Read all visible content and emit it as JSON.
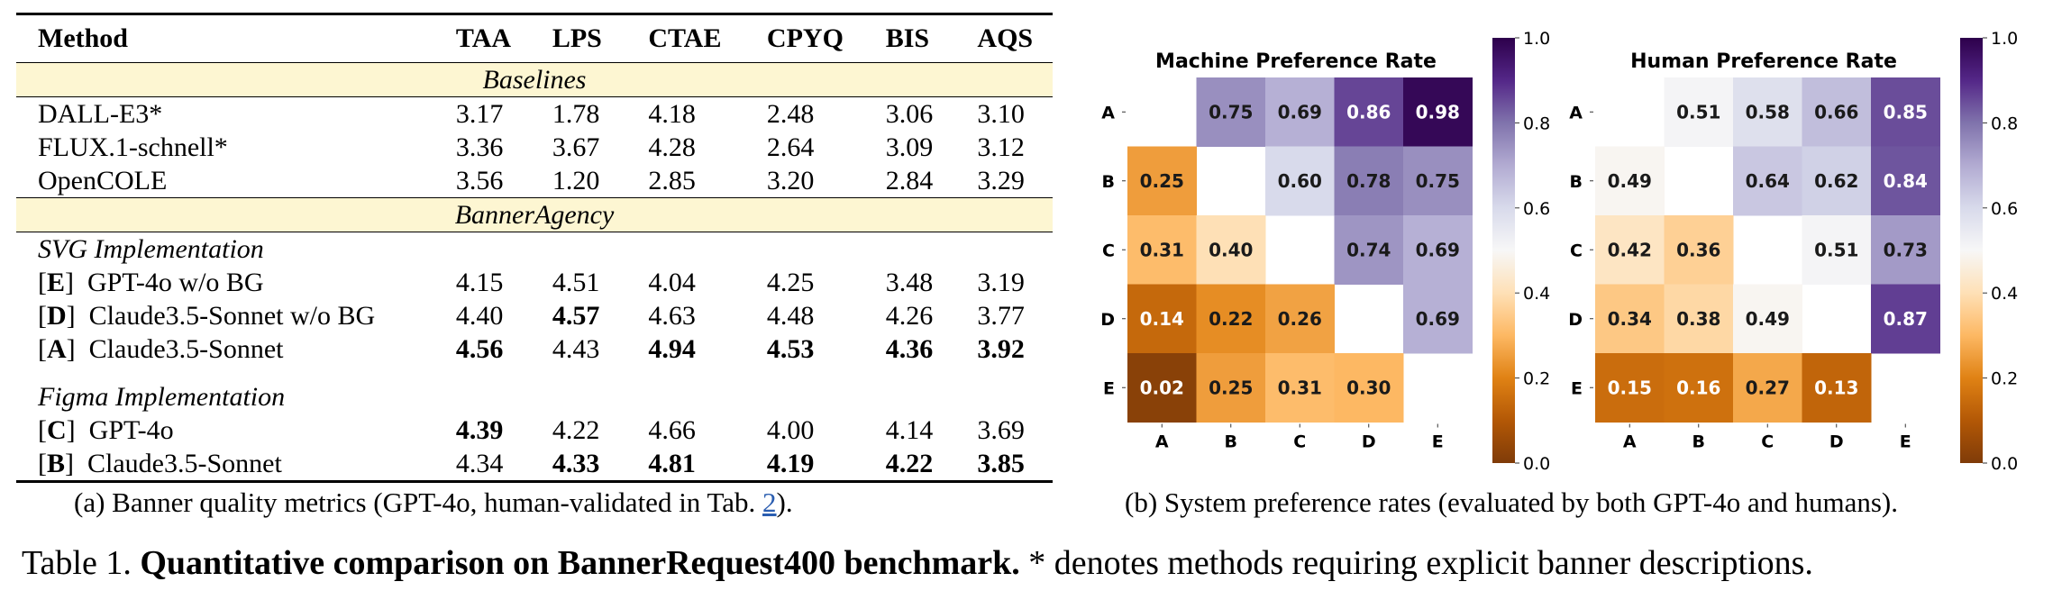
{
  "table": {
    "columns": [
      "Method",
      "TAA",
      "LPS",
      "CTAE",
      "CPYQ",
      "BIS",
      "AQS"
    ],
    "baselines_label": "Baselines",
    "baselines": [
      {
        "method": "DALL-E3*",
        "values": [
          "3.17",
          "1.78",
          "4.18",
          "2.48",
          "3.06",
          "3.10"
        ],
        "bold": [
          false,
          false,
          false,
          false,
          false,
          false
        ]
      },
      {
        "method": "FLUX.1-schnell*",
        "values": [
          "3.36",
          "3.67",
          "4.28",
          "2.64",
          "3.09",
          "3.12"
        ],
        "bold": [
          false,
          false,
          false,
          false,
          false,
          false
        ]
      },
      {
        "method": "OpenCOLE",
        "values": [
          "3.56",
          "1.20",
          "2.85",
          "3.20",
          "2.84",
          "3.29"
        ],
        "bold": [
          false,
          false,
          false,
          false,
          false,
          false
        ]
      }
    ],
    "agency_label": "BannerAgency",
    "svg_label": "SVG Implementation",
    "svg_rows": [
      {
        "tag": "E",
        "method": "GPT-4o w/o BG",
        "values": [
          "4.15",
          "4.51",
          "4.04",
          "4.25",
          "3.48",
          "3.19"
        ],
        "bold": [
          false,
          false,
          false,
          false,
          false,
          false
        ]
      },
      {
        "tag": "D",
        "method": "Claude3.5-Sonnet w/o BG",
        "values": [
          "4.40",
          "4.57",
          "4.63",
          "4.48",
          "4.26",
          "3.77"
        ],
        "bold": [
          false,
          true,
          false,
          false,
          false,
          false
        ]
      },
      {
        "tag": "A",
        "method": "Claude3.5-Sonnet",
        "values": [
          "4.56",
          "4.43",
          "4.94",
          "4.53",
          "4.36",
          "3.92"
        ],
        "bold": [
          true,
          false,
          true,
          true,
          true,
          true
        ]
      }
    ],
    "figma_label": "Figma Implementation",
    "figma_rows": [
      {
        "tag": "C",
        "method": "GPT-4o",
        "values": [
          "4.39",
          "4.22",
          "4.66",
          "4.00",
          "4.14",
          "3.69"
        ],
        "bold": [
          true,
          false,
          false,
          false,
          false,
          false
        ]
      },
      {
        "tag": "B",
        "method": "Claude3.5-Sonnet",
        "values": [
          "4.34",
          "4.33",
          "4.81",
          "4.19",
          "4.22",
          "3.85"
        ],
        "bold": [
          false,
          true,
          true,
          true,
          true,
          true
        ]
      }
    ]
  },
  "captions": {
    "a_text": "(a) Banner quality metrics (GPT-4o, human-validated in Tab. ",
    "a_ref": "2",
    "a_end": ").",
    "b_text": "(b) System preference rates (evaluated by both GPT-4o and humans).",
    "main_prefix": "Table 1. ",
    "main_bold": "Quantitative comparison on BannerRequest400 benchmark.",
    "main_rest": " * denotes methods requiring explicit banner descriptions."
  },
  "chart_data": [
    {
      "type": "heatmap",
      "title": "Machine Preference Rate",
      "rows": [
        "A",
        "B",
        "C",
        "D",
        "E"
      ],
      "cols": [
        "A",
        "B",
        "C",
        "D",
        "E"
      ],
      "values": [
        [
          null,
          0.75,
          0.69,
          0.86,
          0.98
        ],
        [
          0.25,
          null,
          0.6,
          0.78,
          0.75
        ],
        [
          0.31,
          0.4,
          null,
          0.74,
          0.69
        ],
        [
          0.14,
          0.22,
          0.26,
          null,
          0.69
        ],
        [
          0.02,
          0.25,
          0.31,
          0.3,
          null
        ]
      ],
      "colorbar_ticks": [
        "0.0",
        "0.2",
        "0.4",
        "0.6",
        "0.8",
        "1.0"
      ],
      "vmin": 0,
      "vmax": 1,
      "colormap": "PuOr"
    },
    {
      "type": "heatmap",
      "title": "Human Preference Rate",
      "rows": [
        "A",
        "B",
        "C",
        "D",
        "E"
      ],
      "cols": [
        "A",
        "B",
        "C",
        "D",
        "E"
      ],
      "values": [
        [
          null,
          0.51,
          0.58,
          0.66,
          0.85
        ],
        [
          0.49,
          null,
          0.64,
          0.62,
          0.84
        ],
        [
          0.42,
          0.36,
          null,
          0.51,
          0.73
        ],
        [
          0.34,
          0.38,
          0.49,
          null,
          0.87
        ],
        [
          0.15,
          0.16,
          0.27,
          0.13,
          null
        ]
      ],
      "colorbar_ticks": [
        "0.0",
        "0.2",
        "0.4",
        "0.6",
        "0.8",
        "1.0"
      ],
      "vmin": 0,
      "vmax": 1,
      "colormap": "PuOr"
    }
  ]
}
